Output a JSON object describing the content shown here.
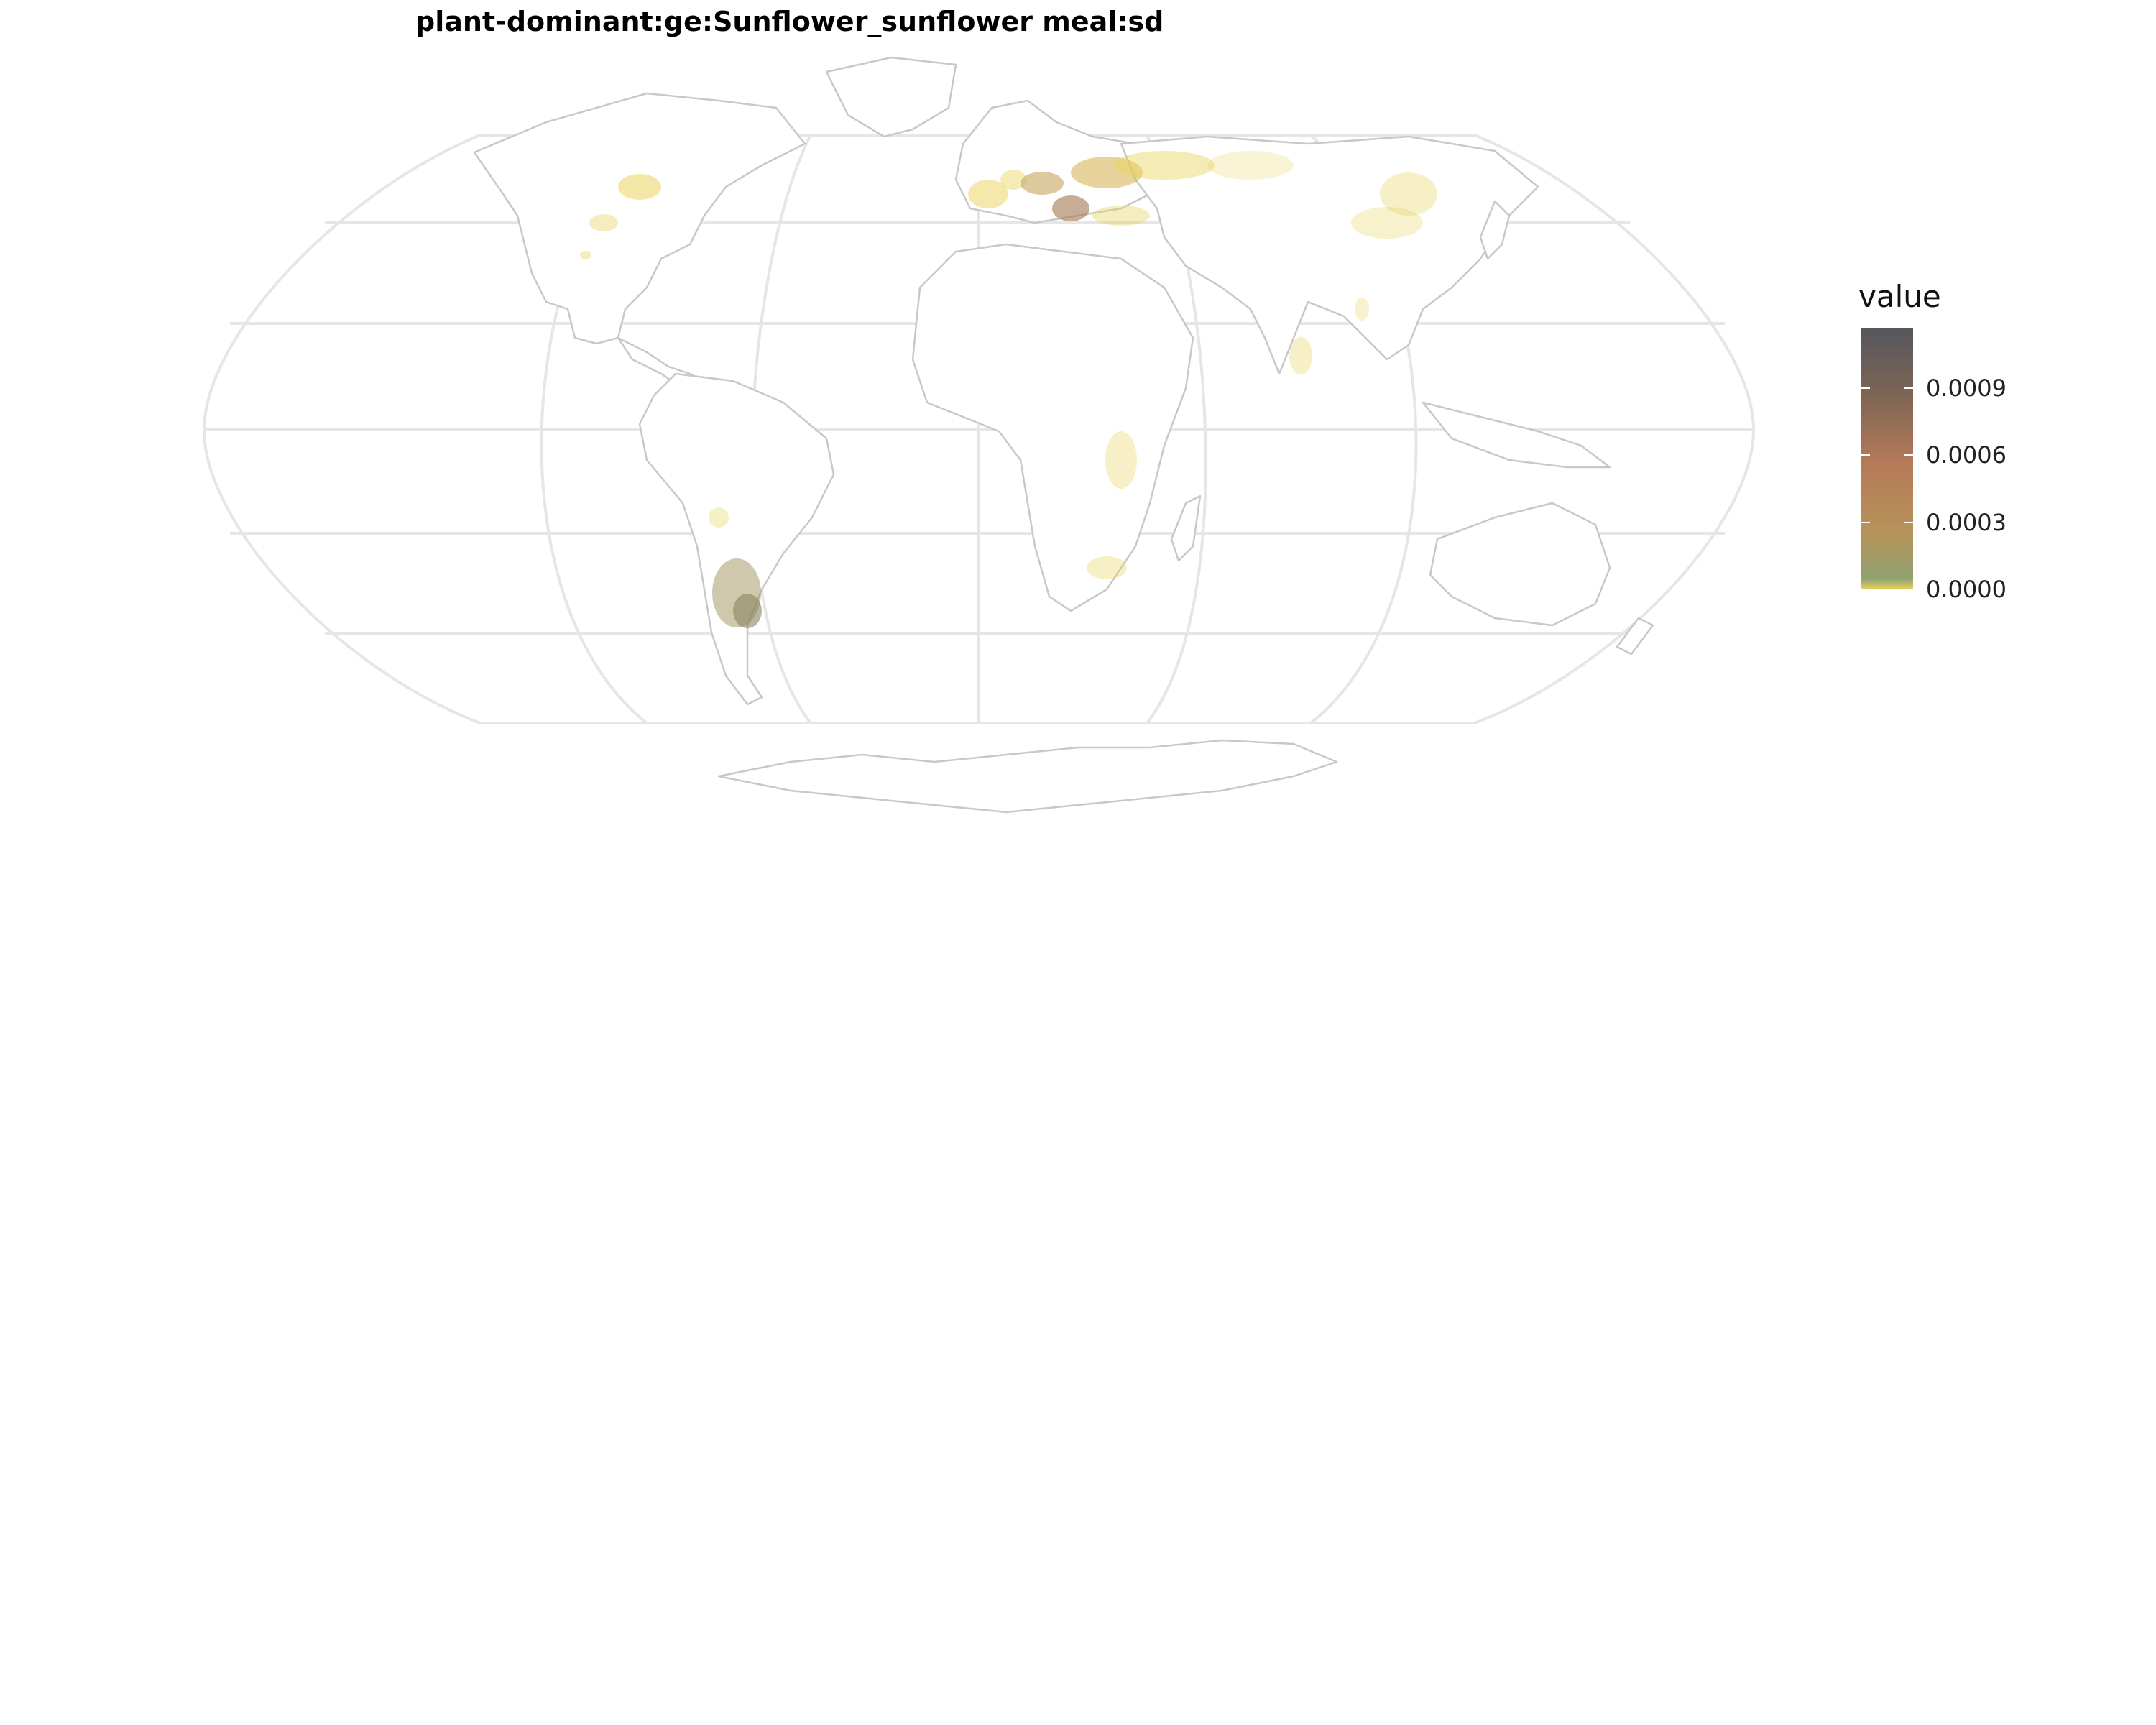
{
  "title": "plant-dominant:ge:Sunflower_sunflower meal:sd",
  "legend": {
    "title": "value",
    "ticks": [
      {
        "label": "0.0009",
        "value": 0.0009
      },
      {
        "label": "0.0006",
        "value": 0.0006
      },
      {
        "label": "0.0003",
        "value": 0.0003
      },
      {
        "label": "0.0000",
        "value": 0.0
      }
    ],
    "min": 0.0,
    "max": 0.00117,
    "colors": [
      "#e9d25c",
      "#8fa26f",
      "#b7925a",
      "#b57a58",
      "#7d6554",
      "#56575d"
    ]
  },
  "map": {
    "projection": "robinson",
    "graticule": true,
    "country_border_color": "#c8c8c8",
    "graticule_color": "#e6e6e6"
  }
}
